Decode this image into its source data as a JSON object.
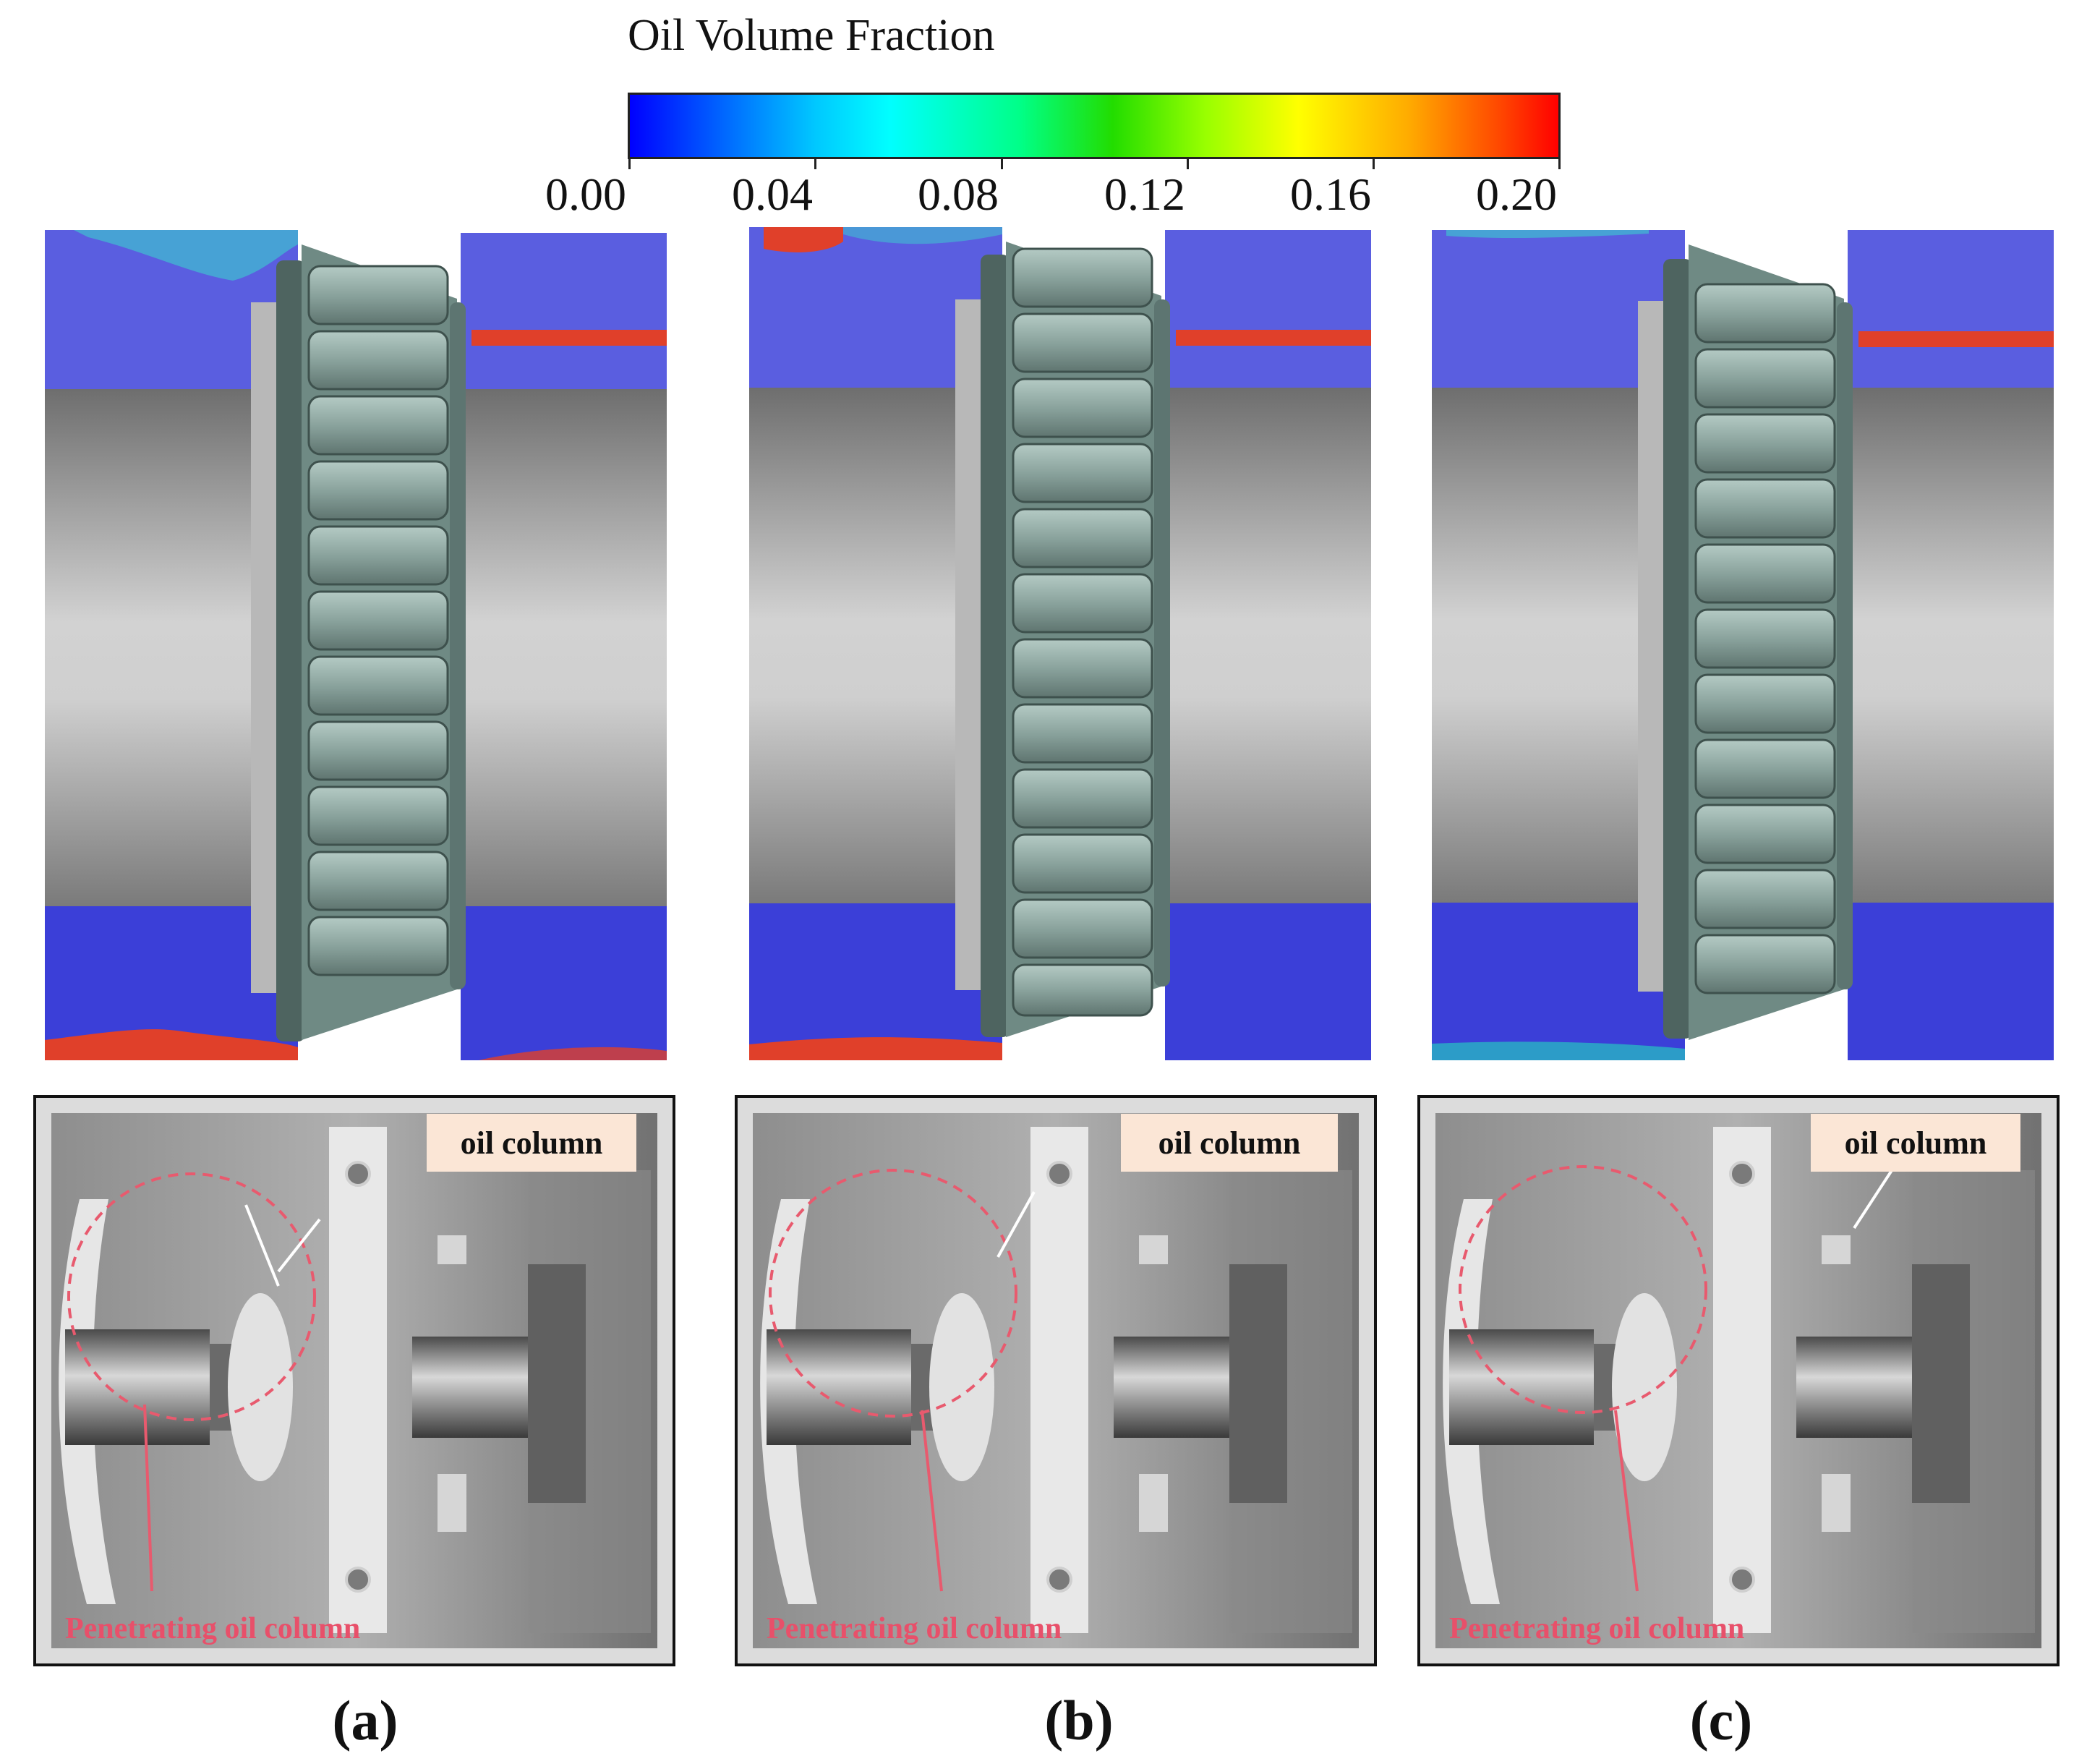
{
  "colorbar": {
    "title": "Oil Volume Fraction",
    "ticks": [
      "0.00",
      "0.04",
      "0.08",
      "0.12",
      "0.16",
      "0.20"
    ],
    "range": [
      0.0,
      0.2
    ],
    "colors": [
      "#0000ff",
      "#00ffff",
      "#00ff00",
      "#ffff00",
      "#ff0000"
    ]
  },
  "panels": [
    {
      "label": "(a)",
      "annotation": "oil column",
      "penetrating_label": "Penetrating oil column"
    },
    {
      "label": "(b)",
      "annotation": "oil column",
      "penetrating_label": "Penetrating oil column"
    },
    {
      "label": "(c)",
      "annotation": "oil column",
      "penetrating_label": "Penetrating oil column"
    }
  ],
  "colors": {
    "background_oil": "#5a5ee0",
    "high_oil": "#e0402a",
    "bearing": "#8fa8a2",
    "shaft": "#c8c8c8",
    "penetrating_text": "#e8506a",
    "tag_background": "#fbe6d6"
  }
}
